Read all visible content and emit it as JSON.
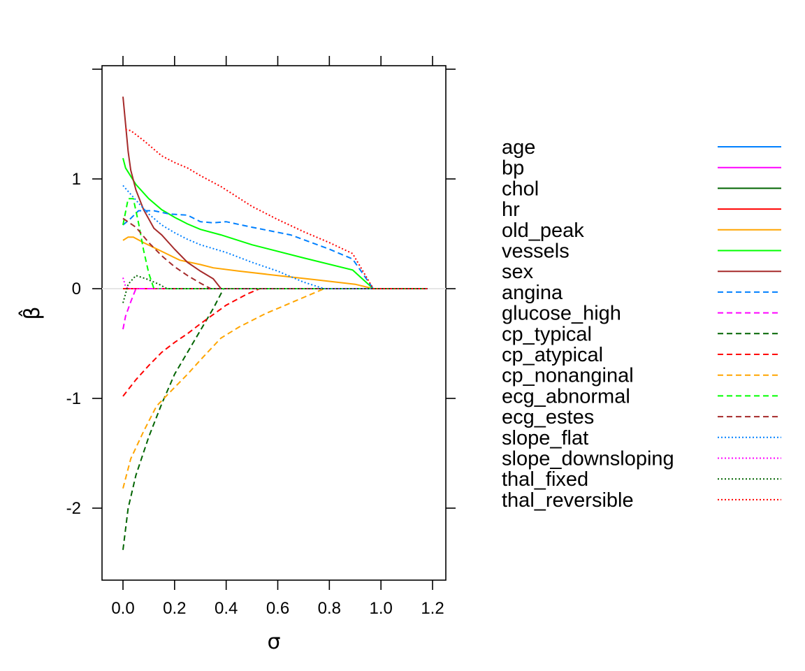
{
  "chart_data": {
    "type": "line",
    "title": "",
    "xlabel": "σ",
    "ylabel": "β̂",
    "xlim": [
      -0.08,
      1.25
    ],
    "ylim": [
      -2.65,
      2.0
    ],
    "xticks": [
      0.0,
      0.2,
      0.4,
      0.6,
      0.8,
      1.0,
      1.2
    ],
    "xtick_labels": [
      "0.0",
      "0.2",
      "0.4",
      "0.6",
      "0.8",
      "1.0",
      "1.2"
    ],
    "yticks": [
      -2,
      -1,
      0,
      1
    ],
    "ytick_labels": [
      "-2",
      "-1",
      "0",
      "1"
    ],
    "reference_line": 0,
    "legend_position": "right",
    "series": [
      {
        "name": "age",
        "color": "#0080FF",
        "style": "solid",
        "points": [
          [
            0.0,
            0.0
          ],
          [
            1.18,
            0.0
          ]
        ]
      },
      {
        "name": "bp",
        "color": "#FF00FF",
        "style": "solid",
        "points": [
          [
            0.0,
            0.0
          ],
          [
            1.18,
            0.0
          ]
        ]
      },
      {
        "name": "chol",
        "color": "#006400",
        "style": "solid",
        "points": [
          [
            0.0,
            0.0
          ],
          [
            1.18,
            0.0
          ]
        ]
      },
      {
        "name": "hr",
        "color": "#FF0000",
        "style": "solid",
        "points": [
          [
            0.0,
            0.0
          ],
          [
            1.18,
            0.0
          ]
        ]
      },
      {
        "name": "old_peak",
        "color": "#FFA500",
        "style": "solid",
        "points": [
          [
            0.0,
            0.44
          ],
          [
            0.02,
            0.47
          ],
          [
            0.04,
            0.47
          ],
          [
            0.08,
            0.42
          ],
          [
            0.15,
            0.34
          ],
          [
            0.22,
            0.26
          ],
          [
            0.3,
            0.22
          ],
          [
            0.35,
            0.19
          ],
          [
            0.45,
            0.16
          ],
          [
            0.6,
            0.12
          ],
          [
            0.75,
            0.08
          ],
          [
            0.9,
            0.04
          ],
          [
            0.97,
            0.0
          ],
          [
            1.18,
            0.0
          ]
        ]
      },
      {
        "name": "vessels",
        "color": "#00FF00",
        "style": "solid",
        "points": [
          [
            0.0,
            1.19
          ],
          [
            0.01,
            1.1
          ],
          [
            0.05,
            0.95
          ],
          [
            0.1,
            0.82
          ],
          [
            0.15,
            0.72
          ],
          [
            0.2,
            0.65
          ],
          [
            0.25,
            0.59
          ],
          [
            0.3,
            0.54
          ],
          [
            0.38,
            0.49
          ],
          [
            0.5,
            0.4
          ],
          [
            0.7,
            0.28
          ],
          [
            0.89,
            0.17
          ],
          [
            0.97,
            0.0
          ],
          [
            1.18,
            0.0
          ]
        ]
      },
      {
        "name": "sex",
        "color": "#A52A2A",
        "style": "solid",
        "points": [
          [
            0.0,
            1.75
          ],
          [
            0.01,
            1.5
          ],
          [
            0.02,
            1.25
          ],
          [
            0.03,
            1.08
          ],
          [
            0.05,
            0.9
          ],
          [
            0.08,
            0.72
          ],
          [
            0.12,
            0.55
          ],
          [
            0.15,
            0.49
          ],
          [
            0.2,
            0.36
          ],
          [
            0.25,
            0.24
          ],
          [
            0.3,
            0.16
          ],
          [
            0.35,
            0.09
          ],
          [
            0.38,
            0.0
          ],
          [
            1.18,
            0.0
          ]
        ]
      },
      {
        "name": "angina",
        "color": "#0080FF",
        "style": "dashed",
        "points": [
          [
            0.0,
            0.58
          ],
          [
            0.03,
            0.64
          ],
          [
            0.06,
            0.71
          ],
          [
            0.12,
            0.71
          ],
          [
            0.18,
            0.68
          ],
          [
            0.25,
            0.67
          ],
          [
            0.3,
            0.61
          ],
          [
            0.35,
            0.6
          ],
          [
            0.4,
            0.61
          ],
          [
            0.5,
            0.56
          ],
          [
            0.65,
            0.49
          ],
          [
            0.8,
            0.36
          ],
          [
            0.89,
            0.27
          ],
          [
            0.97,
            0.0
          ],
          [
            1.18,
            0.0
          ]
        ]
      },
      {
        "name": "glucose_high",
        "color": "#FF00FF",
        "style": "dashed",
        "points": [
          [
            0.0,
            -0.37
          ],
          [
            0.01,
            -0.25
          ],
          [
            0.03,
            -0.12
          ],
          [
            0.05,
            0.0
          ],
          [
            1.18,
            0.0
          ]
        ]
      },
      {
        "name": "cp_typical",
        "color": "#006400",
        "style": "dashed",
        "points": [
          [
            0.0,
            -2.38
          ],
          [
            0.02,
            -2.0
          ],
          [
            0.05,
            -1.7
          ],
          [
            0.1,
            -1.35
          ],
          [
            0.15,
            -1.05
          ],
          [
            0.2,
            -0.78
          ],
          [
            0.25,
            -0.58
          ],
          [
            0.3,
            -0.38
          ],
          [
            0.35,
            -0.18
          ],
          [
            0.39,
            0.0
          ],
          [
            1.18,
            0.0
          ]
        ]
      },
      {
        "name": "cp_atypical",
        "color": "#FF0000",
        "style": "dashed",
        "points": [
          [
            0.0,
            -0.98
          ],
          [
            0.05,
            -0.83
          ],
          [
            0.1,
            -0.7
          ],
          [
            0.15,
            -0.58
          ],
          [
            0.2,
            -0.49
          ],
          [
            0.25,
            -0.41
          ],
          [
            0.3,
            -0.32
          ],
          [
            0.4,
            -0.15
          ],
          [
            0.48,
            -0.05
          ],
          [
            0.53,
            0.0
          ],
          [
            1.18,
            0.0
          ]
        ]
      },
      {
        "name": "cp_nonanginal",
        "color": "#FFA500",
        "style": "dashed",
        "points": [
          [
            0.0,
            -1.82
          ],
          [
            0.03,
            -1.55
          ],
          [
            0.08,
            -1.3
          ],
          [
            0.13,
            -1.07
          ],
          [
            0.2,
            -0.9
          ],
          [
            0.25,
            -0.78
          ],
          [
            0.3,
            -0.65
          ],
          [
            0.38,
            -0.45
          ],
          [
            0.45,
            -0.35
          ],
          [
            0.55,
            -0.23
          ],
          [
            0.65,
            -0.13
          ],
          [
            0.72,
            -0.06
          ],
          [
            0.78,
            0.0
          ],
          [
            1.18,
            0.0
          ]
        ]
      },
      {
        "name": "ecg_abnormal",
        "color": "#00FF00",
        "style": "dashed",
        "points": [
          [
            0.0,
            0.58
          ],
          [
            0.02,
            0.82
          ],
          [
            0.04,
            0.82
          ],
          [
            0.06,
            0.6
          ],
          [
            0.08,
            0.35
          ],
          [
            0.1,
            0.14
          ],
          [
            0.12,
            0.0
          ],
          [
            1.18,
            0.0
          ]
        ]
      },
      {
        "name": "ecg_estes",
        "color": "#A52A2A",
        "style": "dashed",
        "points": [
          [
            0.0,
            0.64
          ],
          [
            0.05,
            0.56
          ],
          [
            0.1,
            0.42
          ],
          [
            0.15,
            0.3
          ],
          [
            0.2,
            0.2
          ],
          [
            0.25,
            0.12
          ],
          [
            0.3,
            0.05
          ],
          [
            0.34,
            0.0
          ],
          [
            1.18,
            0.0
          ]
        ]
      },
      {
        "name": "slope_flat",
        "color": "#0080FF",
        "style": "dotted",
        "points": [
          [
            0.0,
            0.94
          ],
          [
            0.03,
            0.86
          ],
          [
            0.06,
            0.78
          ],
          [
            0.1,
            0.68
          ],
          [
            0.15,
            0.58
          ],
          [
            0.2,
            0.51
          ],
          [
            0.25,
            0.45
          ],
          [
            0.3,
            0.4
          ],
          [
            0.4,
            0.33
          ],
          [
            0.5,
            0.24
          ],
          [
            0.6,
            0.16
          ],
          [
            0.7,
            0.06
          ],
          [
            0.78,
            0.0
          ],
          [
            1.18,
            0.0
          ]
        ]
      },
      {
        "name": "slope_downsloping",
        "color": "#FF00FF",
        "style": "dotted",
        "points": [
          [
            0.0,
            0.1
          ],
          [
            0.01,
            0.02
          ],
          [
            0.02,
            0.0
          ],
          [
            1.18,
            0.0
          ]
        ]
      },
      {
        "name": "thal_fixed",
        "color": "#006400",
        "style": "dotted",
        "points": [
          [
            0.0,
            -0.13
          ],
          [
            0.02,
            0.04
          ],
          [
            0.05,
            0.12
          ],
          [
            0.09,
            0.09
          ],
          [
            0.14,
            0.04
          ],
          [
            0.17,
            0.0
          ],
          [
            1.18,
            0.0
          ]
        ]
      },
      {
        "name": "thal_reversible",
        "color": "#FF0000",
        "style": "dotted",
        "points": [
          [
            0.01,
            1.45
          ],
          [
            0.03,
            1.44
          ],
          [
            0.08,
            1.35
          ],
          [
            0.15,
            1.21
          ],
          [
            0.2,
            1.15
          ],
          [
            0.25,
            1.1
          ],
          [
            0.3,
            1.03
          ],
          [
            0.38,
            0.93
          ],
          [
            0.5,
            0.75
          ],
          [
            0.6,
            0.63
          ],
          [
            0.7,
            0.52
          ],
          [
            0.8,
            0.42
          ],
          [
            0.89,
            0.32
          ],
          [
            0.97,
            0.0
          ],
          [
            1.18,
            0.0
          ]
        ]
      }
    ]
  }
}
